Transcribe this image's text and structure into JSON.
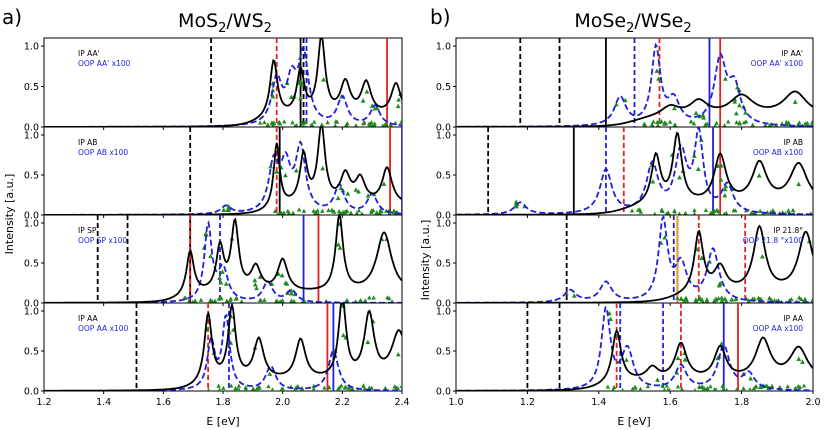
{
  "figure": {
    "panel_a_label": "a)",
    "panel_b_label": "b)",
    "title_a": {
      "main": "MoS",
      "sub1": "2",
      "mid": "/WS",
      "sub2": "2"
    },
    "title_b": {
      "main": "MoSe",
      "sub1": "2",
      "mid": "/WSe",
      "sub2": "2"
    },
    "ylabel": "Intensity [a.u.]",
    "xlabel": "E [eV]"
  },
  "colors": {
    "ip": "#000000",
    "oop": "#1f1fdc",
    "red_marker": "#e8201c",
    "green_scatter": "#208a20",
    "orange_marker": "#f0a020"
  },
  "chart_data": [
    {
      "type": "line",
      "column": "a",
      "row": 0,
      "legend": [
        "IP AA'",
        "OOP AA' x100"
      ],
      "xlim": [
        1.2,
        2.4
      ],
      "ylim": [
        0,
        1.1
      ],
      "xticks": [
        "1.2",
        "1.4",
        "1.6",
        "1.8",
        "2.0",
        "2.2",
        "2.4"
      ],
      "yticks": [
        "0.0",
        "0.5",
        "1.0"
      ],
      "onset": 1.92,
      "ip_peaks": [
        [
          1.97,
          0.7,
          0.015
        ],
        [
          2.06,
          0.55,
          0.015
        ],
        [
          2.13,
          0.95,
          0.015
        ],
        [
          2.21,
          0.4,
          0.02
        ],
        [
          2.28,
          0.4,
          0.02
        ],
        [
          2.38,
          0.4,
          0.02
        ]
      ],
      "oop_peaks": [
        [
          1.98,
          0.55,
          0.02
        ],
        [
          2.03,
          0.5,
          0.02
        ],
        [
          2.07,
          0.85,
          0.02
        ],
        [
          2.2,
          0.35,
          0.02
        ],
        [
          2.31,
          0.25,
          0.02
        ]
      ],
      "black_dashed": [
        1.76,
        2.07
      ],
      "black_solid": [
        2.06
      ],
      "red_dashed": [
        1.98
      ],
      "red_solid": [
        2.35
      ],
      "blue_solid": [],
      "blue_dashed": [
        2.08
      ],
      "orange_solid": []
    },
    {
      "type": "line",
      "column": "a",
      "row": 1,
      "legend": [
        "IP AB",
        "OOP AB x100"
      ],
      "xlim": [
        1.2,
        2.4
      ],
      "ylim": [
        0,
        1.1
      ],
      "xticks": [
        "1.2",
        "1.4",
        "1.6",
        "1.8",
        "2.0",
        "2.2",
        "2.4"
      ],
      "yticks": [
        "0.0",
        "0.5",
        "1.0"
      ],
      "onset": 1.97,
      "ip_peaks": [
        [
          1.98,
          0.8,
          0.012
        ],
        [
          2.07,
          0.6,
          0.015
        ],
        [
          2.13,
          0.95,
          0.015
        ],
        [
          2.21,
          0.35,
          0.02
        ],
        [
          2.26,
          0.3,
          0.02
        ],
        [
          2.35,
          0.45,
          0.02
        ]
      ],
      "oop_peaks": [
        [
          1.81,
          0.1,
          0.02
        ],
        [
          1.97,
          0.6,
          0.02
        ],
        [
          2.01,
          0.55,
          0.02
        ],
        [
          2.06,
          0.8,
          0.02
        ],
        [
          2.19,
          0.35,
          0.02
        ],
        [
          2.3,
          0.25,
          0.02
        ]
      ],
      "black_dashed": [
        1.69
      ],
      "black_solid": [
        1.99
      ],
      "red_dashed": [
        1.98
      ],
      "red_solid": [
        2.36
      ],
      "blue_solid": [
        2.4
      ],
      "blue_dashed": [],
      "orange_solid": []
    },
    {
      "type": "line",
      "column": "a",
      "row": 2,
      "legend": [
        "IP SP",
        "OOP SP x100"
      ],
      "xlim": [
        1.2,
        2.4
      ],
      "ylim": [
        0,
        1.1
      ],
      "xticks": [
        "1.2",
        "1.4",
        "1.6",
        "1.8",
        "2.0",
        "2.2",
        "2.4"
      ],
      "yticks": [
        "0.0",
        "0.5",
        "1.0"
      ],
      "onset": 1.67,
      "ip_peaks": [
        [
          1.69,
          0.55,
          0.015
        ],
        [
          1.79,
          0.55,
          0.015
        ],
        [
          1.84,
          0.85,
          0.015
        ],
        [
          1.91,
          0.3,
          0.02
        ],
        [
          2.0,
          0.4,
          0.02
        ],
        [
          2.19,
          0.95,
          0.015
        ],
        [
          2.34,
          0.75,
          0.03
        ]
      ],
      "oop_peaks": [
        [
          1.75,
          0.95,
          0.015
        ],
        [
          1.8,
          0.4,
          0.02
        ],
        [
          1.95,
          0.25,
          0.02
        ],
        [
          2.03,
          0.15,
          0.02
        ]
      ],
      "black_dashed": [
        1.38,
        1.48
      ],
      "black_solid": [
        1.69
      ],
      "red_dashed": [
        1.69
      ],
      "red_solid": [
        2.12
      ],
      "blue_solid": [
        2.07
      ],
      "blue_dashed": [
        1.79
      ],
      "orange_solid": []
    },
    {
      "type": "line",
      "column": "a",
      "row": 3,
      "legend": [
        "IP AA",
        "OOP AA x100"
      ],
      "xlim": [
        1.2,
        2.4
      ],
      "ylim": [
        0,
        1.1
      ],
      "xticks": [
        "1.2",
        "1.4",
        "1.6",
        "1.8",
        "2.0",
        "2.2",
        "2.4"
      ],
      "yticks": [
        "0.0",
        "0.5",
        "1.0"
      ],
      "onset": 1.73,
      "ip_peaks": [
        [
          1.75,
          0.85,
          0.015
        ],
        [
          1.83,
          0.9,
          0.015
        ],
        [
          1.92,
          0.5,
          0.02
        ],
        [
          2.06,
          0.5,
          0.02
        ],
        [
          2.2,
          1.0,
          0.015
        ],
        [
          2.29,
          0.8,
          0.02
        ],
        [
          2.39,
          0.6,
          0.03
        ]
      ],
      "oop_peaks": [
        [
          1.76,
          0.6,
          0.015
        ],
        [
          1.81,
          0.9,
          0.015
        ],
        [
          1.96,
          0.3,
          0.02
        ],
        [
          2.17,
          0.5,
          0.02
        ]
      ],
      "black_dashed": [
        1.51
      ],
      "black_solid": [],
      "red_dashed": [
        1.75
      ],
      "red_solid": [
        2.15
      ],
      "blue_solid": [
        2.17
      ],
      "blue_dashed": [
        1.82
      ],
      "orange_solid": []
    },
    {
      "type": "line",
      "column": "b",
      "row": 0,
      "legend": [
        "IP AA'",
        "OOP AA' x100"
      ],
      "xlim": [
        1.0,
        2.0
      ],
      "ylim": [
        0,
        1.1
      ],
      "xticks": [
        "1.0",
        "1.2",
        "1.4",
        "1.6",
        "1.8",
        "2.0"
      ],
      "yticks": [
        "0.0",
        "0.5",
        "1.0"
      ],
      "onset": 1.5,
      "ip_peaks": [
        [
          1.6,
          0.12,
          0.03
        ],
        [
          1.68,
          0.18,
          0.03
        ],
        [
          1.8,
          0.25,
          0.04
        ],
        [
          1.95,
          0.3,
          0.04
        ]
      ],
      "oop_peaks": [
        [
          1.46,
          0.35,
          0.02
        ],
        [
          1.56,
          0.95,
          0.015
        ],
        [
          1.61,
          0.3,
          0.02
        ],
        [
          1.74,
          0.8,
          0.02
        ],
        [
          1.78,
          0.45,
          0.02
        ]
      ],
      "black_dashed": [
        1.18,
        1.29
      ],
      "black_solid": [
        1.42
      ],
      "red_dashed": [
        1.57
      ],
      "red_solid": [
        1.74
      ],
      "blue_solid": [
        1.71
      ],
      "blue_dashed": [
        1.5
      ],
      "orange_solid": []
    },
    {
      "type": "line",
      "column": "b",
      "row": 1,
      "legend": [
        "IP AB",
        "OOP AB x100"
      ],
      "xlim": [
        1.0,
        2.0
      ],
      "ylim": [
        0,
        1.1
      ],
      "xticks": [
        "1.0",
        "1.2",
        "1.4",
        "1.6",
        "1.8",
        "2.0"
      ],
      "yticks": [
        "0.0",
        "0.5",
        "1.0"
      ],
      "onset": 1.48,
      "ip_peaks": [
        [
          1.56,
          0.6,
          0.015
        ],
        [
          1.62,
          0.85,
          0.015
        ],
        [
          1.74,
          0.6,
          0.02
        ],
        [
          1.85,
          0.5,
          0.025
        ],
        [
          1.96,
          0.5,
          0.03
        ]
      ],
      "oop_peaks": [
        [
          1.18,
          0.15,
          0.02
        ],
        [
          1.42,
          0.55,
          0.02
        ],
        [
          1.55,
          0.6,
          0.02
        ],
        [
          1.63,
          0.75,
          0.02
        ],
        [
          1.68,
          0.95,
          0.015
        ],
        [
          1.76,
          0.35,
          0.02
        ]
      ],
      "black_dashed": [
        1.09
      ],
      "black_solid": [
        1.33
      ],
      "red_dashed": [
        1.47
      ],
      "red_solid": [
        1.74
      ],
      "blue_solid": [
        1.72
      ],
      "blue_dashed": [
        1.42
      ],
      "orange_solid": []
    },
    {
      "type": "line",
      "column": "b",
      "row": 2,
      "legend": [
        "IP 21.8°",
        "OOP 21.8 °x100"
      ],
      "xlim": [
        1.0,
        2.0
      ],
      "ylim": [
        0,
        1.1
      ],
      "xticks": [
        "1.0",
        "1.2",
        "1.4",
        "1.6",
        "1.8",
        "2.0"
      ],
      "yticks": [
        "0.0",
        "0.5",
        "1.0"
      ],
      "onset": 1.62,
      "ip_peaks": [
        [
          1.68,
          0.75,
          0.015
        ],
        [
          1.74,
          0.3,
          0.02
        ],
        [
          1.85,
          0.8,
          0.02
        ],
        [
          1.98,
          0.75,
          0.025
        ]
      ],
      "oop_peaks": [
        [
          1.32,
          0.15,
          0.02
        ],
        [
          1.42,
          0.25,
          0.02
        ],
        [
          1.58,
          1.0,
          0.015
        ],
        [
          1.63,
          0.45,
          0.02
        ],
        [
          1.72,
          0.65,
          0.02
        ]
      ],
      "black_dashed": [
        1.31
      ],
      "black_solid": [
        1.62
      ],
      "red_dashed": [
        1.68,
        1.81
      ],
      "red_solid": [],
      "blue_solid": [],
      "blue_dashed": [
        1.61
      ],
      "orange_solid": [
        1.62
      ]
    },
    {
      "type": "line",
      "column": "b",
      "row": 3,
      "legend": [
        "IP AA",
        "OOP AA x100"
      ],
      "xlim": [
        1.0,
        2.0
      ],
      "ylim": [
        0,
        1.1
      ],
      "xticks": [
        "1.0",
        "1.2",
        "1.4",
        "1.6",
        "1.8",
        "2.0"
      ],
      "yticks": [
        "0.0",
        "0.5",
        "1.0"
      ],
      "onset": 1.42,
      "ip_peaks": [
        [
          1.45,
          0.65,
          0.015
        ],
        [
          1.55,
          0.15,
          0.02
        ],
        [
          1.63,
          0.45,
          0.02
        ],
        [
          1.74,
          0.4,
          0.02
        ],
        [
          1.86,
          0.5,
          0.025
        ],
        [
          1.96,
          0.4,
          0.03
        ]
      ],
      "oop_peaks": [
        [
          1.42,
          1.0,
          0.015
        ],
        [
          1.48,
          0.5,
          0.02
        ],
        [
          1.63,
          0.3,
          0.02
        ],
        [
          1.75,
          0.55,
          0.02
        ],
        [
          1.82,
          0.2,
          0.02
        ]
      ],
      "black_dashed": [
        1.2,
        1.29
      ],
      "black_solid": [],
      "red_dashed": [
        1.45,
        1.63
      ],
      "red_solid": [
        1.79
      ],
      "blue_solid": [
        1.75
      ],
      "blue_dashed": [
        1.46,
        1.58
      ],
      "orange_solid": []
    }
  ]
}
